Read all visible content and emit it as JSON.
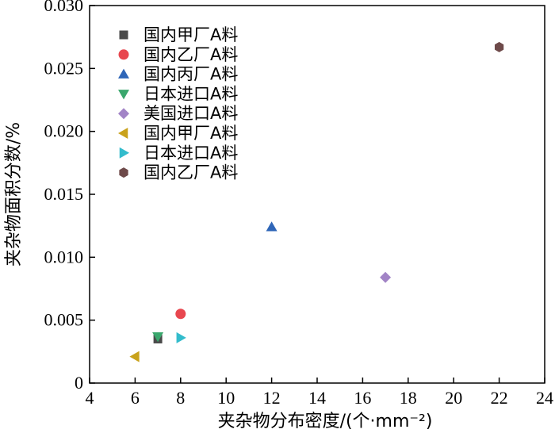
{
  "chart_data": {
    "type": "scatter",
    "title": "",
    "xlabel": "夹杂物分布密度/(个·mm⁻²)",
    "ylabel": "夹杂物面积分数/%",
    "xlim": [
      4,
      24
    ],
    "ylim": [
      0,
      0.03
    ],
    "x_ticks": [
      "4",
      "6",
      "8",
      "10",
      "12",
      "14",
      "16",
      "18",
      "20",
      "22",
      "24"
    ],
    "y_ticks": [
      "0",
      "0.005",
      "0.010",
      "0.015",
      "0.020",
      "0.025",
      "0.030"
    ],
    "grid": false,
    "legend_position": "top-left",
    "series": [
      {
        "name": "国内甲厂A料",
        "marker": "square",
        "color": "#4a4a4a",
        "points": [
          {
            "x": 7,
            "y": 0.0035
          }
        ]
      },
      {
        "name": "国内乙厂A料",
        "marker": "circle",
        "color": "#e8474f",
        "points": [
          {
            "x": 8,
            "y": 0.0055
          }
        ]
      },
      {
        "name": "国内丙厂A料",
        "marker": "triangle-up",
        "color": "#2f66b8",
        "points": [
          {
            "x": 12,
            "y": 0.0124
          }
        ]
      },
      {
        "name": "日本进口A料",
        "marker": "triangle-down",
        "color": "#3aa76d",
        "points": [
          {
            "x": 7,
            "y": 0.0037
          }
        ]
      },
      {
        "name": "美国进口A料",
        "marker": "diamond",
        "color": "#a284c6",
        "points": [
          {
            "x": 17,
            "y": 0.0084
          }
        ]
      },
      {
        "name": "国内甲厂A料",
        "marker": "triangle-left",
        "color": "#c9a21b",
        "points": [
          {
            "x": 6,
            "y": 0.0021
          }
        ]
      },
      {
        "name": "日本进口A料",
        "marker": "triangle-right",
        "color": "#33bccc",
        "points": [
          {
            "x": 8,
            "y": 0.0036
          }
        ]
      },
      {
        "name": "国内乙厂A料",
        "marker": "hexagon",
        "color": "#6e4a4a",
        "points": [
          {
            "x": 22,
            "y": 0.0267
          }
        ]
      }
    ]
  }
}
